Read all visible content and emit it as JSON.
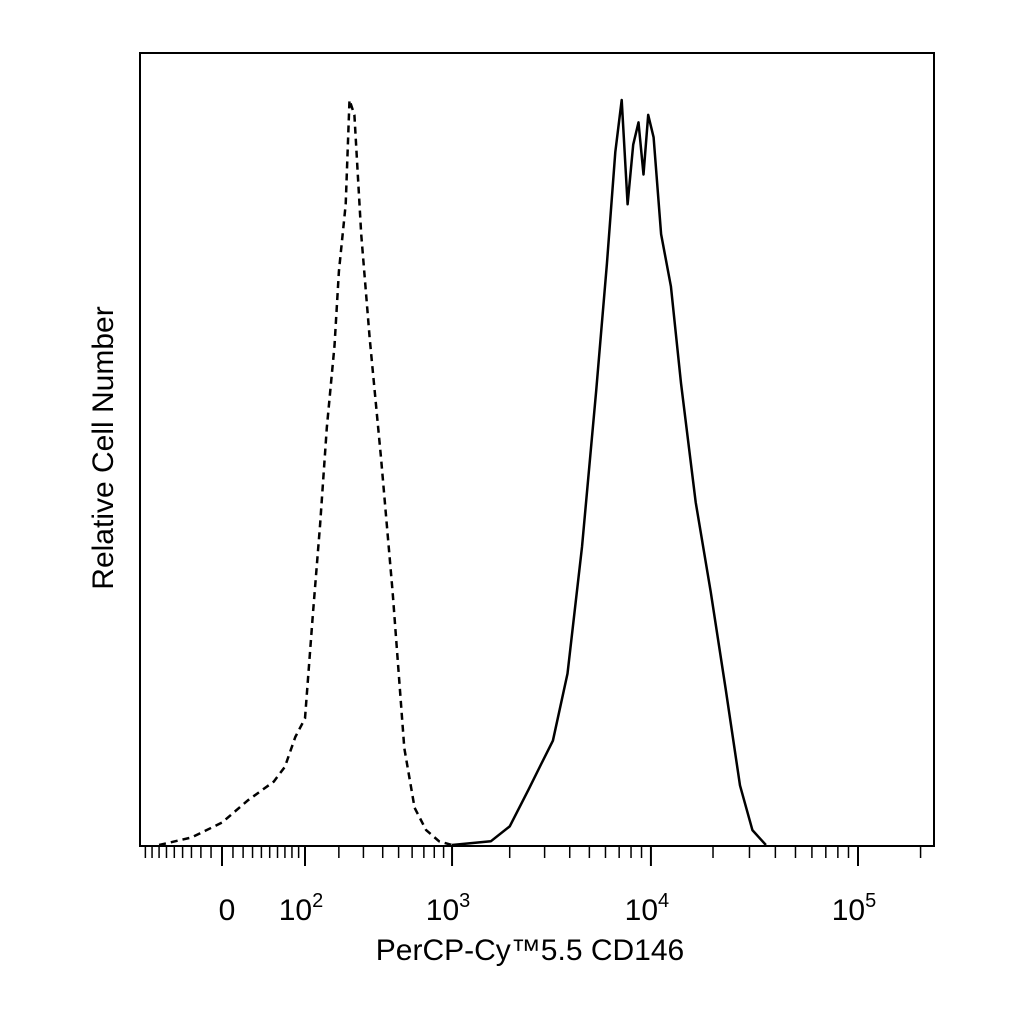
{
  "chart_data": {
    "type": "line",
    "title": "",
    "xlabel": "PerCP-Cy™5.5 CD146",
    "ylabel": "Relative Cell Number",
    "x_scale": "biexponential (linear near 0, log above ~10^2)",
    "x_ticks": [
      {
        "value": 0,
        "base": "0",
        "exp": ""
      },
      {
        "value": 100,
        "base": "10",
        "exp": "2"
      },
      {
        "value": 1000,
        "base": "10",
        "exp": "3"
      },
      {
        "value": 10000,
        "base": "10",
        "exp": "4"
      },
      {
        "value": 100000,
        "base": "10",
        "exp": "5"
      }
    ],
    "xlim": [
      -120,
      250000
    ],
    "ylim": [
      0,
      100
    ],
    "grid": false,
    "legend": "none",
    "series": [
      {
        "style": "dashed",
        "color": "#000000",
        "points": [
          [
            -70,
            0
          ],
          [
            -30,
            1
          ],
          [
            0,
            3
          ],
          [
            25,
            6
          ],
          [
            55,
            8.5
          ],
          [
            70,
            10.5
          ],
          [
            85,
            14.5
          ],
          [
            100,
            17
          ],
          [
            120,
            31
          ],
          [
            140,
            43
          ],
          [
            160,
            56
          ],
          [
            185,
            67
          ],
          [
            200,
            77
          ],
          [
            225,
            86
          ],
          [
            240,
            100
          ],
          [
            260,
            98
          ],
          [
            290,
            82
          ],
          [
            330,
            68
          ],
          [
            390,
            52
          ],
          [
            460,
            34
          ],
          [
            540,
            13
          ],
          [
            620,
            5
          ],
          [
            720,
            2
          ],
          [
            850,
            0.5
          ],
          [
            1000,
            0
          ]
        ]
      },
      {
        "style": "solid",
        "color": "#000000",
        "points": [
          [
            1000,
            0
          ],
          [
            1600,
            0.5
          ],
          [
            2000,
            2.5
          ],
          [
            2500,
            7.5
          ],
          [
            2900,
            11
          ],
          [
            3300,
            14
          ],
          [
            3900,
            23
          ],
          [
            4600,
            40
          ],
          [
            5400,
            61
          ],
          [
            6100,
            78
          ],
          [
            6700,
            93
          ],
          [
            7200,
            100
          ],
          [
            7700,
            86
          ],
          [
            8200,
            94
          ],
          [
            8700,
            97
          ],
          [
            9200,
            90
          ],
          [
            9700,
            98
          ],
          [
            10300,
            95
          ],
          [
            11200,
            82
          ],
          [
            12500,
            75
          ],
          [
            14000,
            62
          ],
          [
            16500,
            46
          ],
          [
            19500,
            34
          ],
          [
            23000,
            21
          ],
          [
            27000,
            8
          ],
          [
            31000,
            2
          ],
          [
            36000,
            0
          ]
        ]
      }
    ]
  }
}
